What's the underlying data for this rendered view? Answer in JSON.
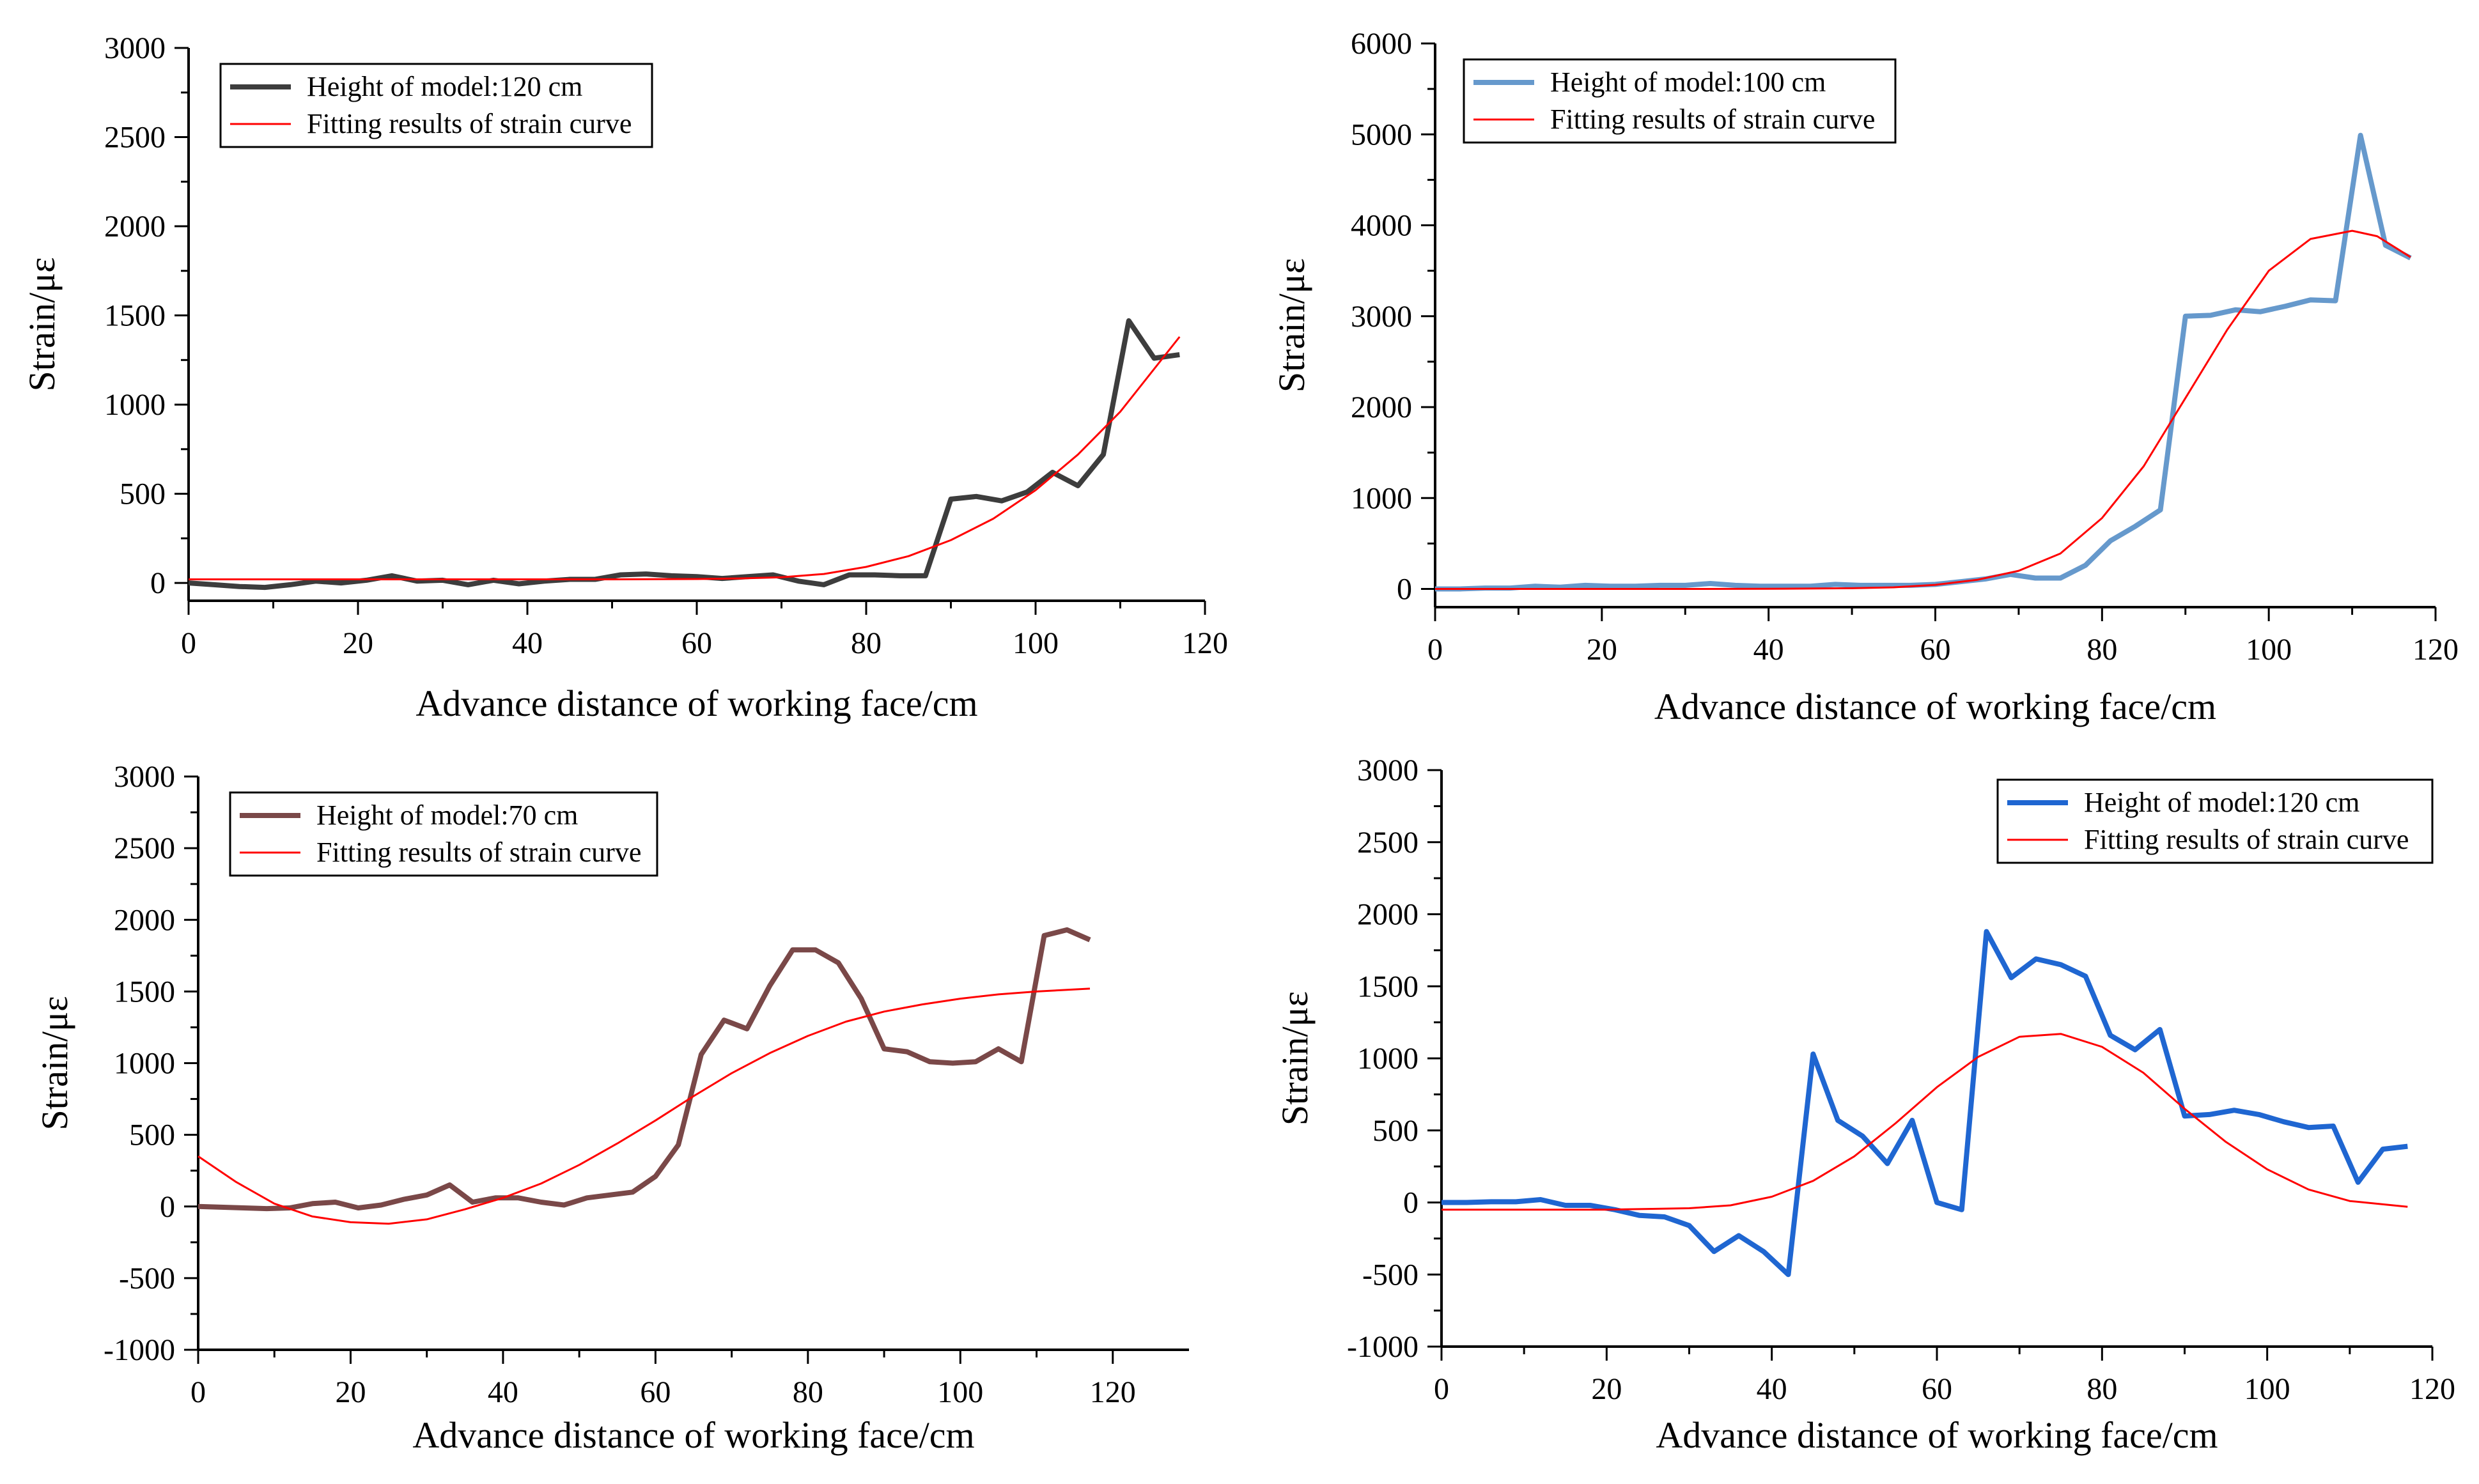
{
  "figure": {
    "panels": [
      {
        "id": "top-left",
        "legend_position": "top-left",
        "legend": [
          {
            "label": "Height of model:120 cm",
            "series": 0
          },
          {
            "label": "Fitting results of strain curve",
            "series": 1
          }
        ]
      },
      {
        "id": "top-right",
        "legend_position": "top-left",
        "legend": [
          {
            "label": "Height of model:100 cm",
            "series": 0
          },
          {
            "label": "Fitting results of strain curve",
            "series": 1
          }
        ]
      },
      {
        "id": "bottom-left",
        "legend_position": "top-left",
        "legend": [
          {
            "label": "Height of model:70 cm",
            "series": 0
          },
          {
            "label": "Fitting results of strain curve",
            "series": 1
          }
        ]
      },
      {
        "id": "bottom-right",
        "legend_position": "top-right",
        "legend": [
          {
            "label": "Height of model:120 cm",
            "series": 0
          },
          {
            "label": "Fitting results of strain curve",
            "series": 1
          }
        ]
      }
    ]
  },
  "chart_data": [
    {
      "type": "line",
      "title": "",
      "xlabel": "Advance distance of working face/cm",
      "ylabel": "Strain/με",
      "xlim": [
        0,
        120
      ],
      "ylim": [
        -100,
        3000
      ],
      "xticks": [
        0,
        20,
        40,
        60,
        80,
        100,
        120
      ],
      "yticks": [
        0,
        500,
        1000,
        1500,
        2000,
        2500,
        3000
      ],
      "grid": false,
      "series": [
        {
          "name": "Height of model:120 cm",
          "color": "#3d3d3d",
          "x": [
            0,
            3,
            6,
            9,
            12,
            15,
            18,
            21,
            24,
            27,
            30,
            33,
            36,
            39,
            42,
            45,
            48,
            51,
            54,
            57,
            60,
            63,
            66,
            69,
            72,
            75,
            78,
            81,
            84,
            87,
            90,
            93,
            96,
            99,
            102,
            105,
            108,
            111,
            114,
            117
          ],
          "y": [
            0,
            -10,
            -20,
            -25,
            -10,
            10,
            0,
            15,
            40,
            10,
            15,
            -10,
            15,
            -5,
            10,
            20,
            20,
            45,
            50,
            40,
            35,
            25,
            35,
            45,
            10,
            -10,
            45,
            45,
            40,
            40,
            470,
            485,
            460,
            510,
            620,
            545,
            720,
            1470,
            1260,
            1280
          ]
        },
        {
          "name": "Fitting results of strain curve",
          "color": "#ff0000",
          "x": [
            0,
            10,
            20,
            30,
            40,
            50,
            60,
            65,
            70,
            75,
            80,
            85,
            90,
            95,
            100,
            105,
            110,
            117
          ],
          "y": [
            20,
            20,
            20,
            20,
            20,
            20,
            22,
            25,
            32,
            50,
            90,
            150,
            240,
            360,
            520,
            720,
            960,
            1380
          ]
        }
      ]
    },
    {
      "type": "line",
      "title": "",
      "xlabel": "Advance distance of working face/cm",
      "ylabel": "Strain/με",
      "xlim": [
        0,
        120
      ],
      "ylim": [
        -200,
        6000
      ],
      "xticks": [
        0,
        20,
        40,
        60,
        80,
        100,
        120
      ],
      "yticks": [
        0,
        1000,
        2000,
        3000,
        4000,
        5000,
        6000
      ],
      "grid": false,
      "series": [
        {
          "name": "Height of model:100 cm",
          "color": "#6699cc",
          "x": [
            0,
            3,
            6,
            9,
            12,
            15,
            18,
            21,
            24,
            27,
            30,
            33,
            36,
            39,
            42,
            45,
            48,
            51,
            54,
            57,
            60,
            63,
            66,
            69,
            72,
            75,
            78,
            81,
            84,
            87,
            90,
            93,
            96,
            99,
            102,
            105,
            108,
            111,
            114,
            117
          ],
          "y": [
            0,
            0,
            10,
            10,
            30,
            20,
            40,
            30,
            30,
            40,
            40,
            60,
            40,
            30,
            30,
            30,
            50,
            40,
            40,
            40,
            50,
            80,
            110,
            160,
            120,
            120,
            260,
            530,
            690,
            870,
            3000,
            3010,
            3070,
            3050,
            3110,
            3180,
            3170,
            4990,
            3780,
            3640
          ]
        },
        {
          "name": "Fitting results of strain curve",
          "color": "#ff0000",
          "x": [
            0,
            10,
            20,
            30,
            40,
            50,
            55,
            60,
            65,
            70,
            75,
            80,
            85,
            90,
            95,
            100,
            105,
            110,
            113,
            117
          ],
          "y": [
            0,
            0,
            0,
            0,
            2,
            8,
            18,
            45,
            100,
            200,
            390,
            780,
            1350,
            2100,
            2850,
            3500,
            3850,
            3940,
            3880,
            3650
          ]
        }
      ]
    },
    {
      "type": "line",
      "title": "",
      "xlabel": "Advance distance of working face/cm",
      "ylabel": "Strain/με",
      "xlim": [
        0,
        130
      ],
      "ylim": [
        -1000,
        3000
      ],
      "xticks": [
        0,
        20,
        40,
        60,
        80,
        100,
        120
      ],
      "yticks": [
        -1000,
        -500,
        0,
        500,
        1000,
        1500,
        2000,
        2500,
        3000
      ],
      "grid": false,
      "series": [
        {
          "name": "Height of model:70 cm",
          "color": "#7a4848",
          "x": [
            0,
            3,
            6,
            9,
            12,
            15,
            18,
            21,
            24,
            27,
            30,
            33,
            36,
            39,
            42,
            45,
            48,
            51,
            54,
            57,
            60,
            63,
            66,
            69,
            72,
            75,
            78,
            81,
            84,
            87,
            90,
            93,
            96,
            99,
            102,
            105,
            108,
            111,
            114,
            117
          ],
          "y": [
            0,
            -5,
            -10,
            -15,
            -10,
            20,
            30,
            -10,
            10,
            50,
            80,
            150,
            30,
            60,
            60,
            30,
            10,
            60,
            80,
            100,
            210,
            430,
            1060,
            1300,
            1240,
            1540,
            1790,
            1790,
            1700,
            1450,
            1100,
            1080,
            1010,
            1000,
            1010,
            1100,
            1010,
            1890,
            1930,
            1860
          ]
        },
        {
          "name": "Fitting results of strain curve",
          "color": "#ff0000",
          "x": [
            0,
            5,
            10,
            15,
            20,
            25,
            30,
            35,
            40,
            45,
            50,
            55,
            60,
            65,
            70,
            75,
            80,
            85,
            90,
            95,
            100,
            105,
            110,
            117
          ],
          "y": [
            350,
            170,
            20,
            -70,
            -110,
            -120,
            -90,
            -20,
            60,
            160,
            290,
            440,
            600,
            770,
            930,
            1070,
            1190,
            1290,
            1360,
            1410,
            1450,
            1480,
            1500,
            1520
          ]
        }
      ]
    },
    {
      "type": "line",
      "title": "",
      "xlabel": "Advance distance of working face/cm",
      "ylabel": "Strain/με",
      "xlim": [
        0,
        120
      ],
      "ylim": [
        -1000,
        3000
      ],
      "xticks": [
        0,
        20,
        40,
        60,
        80,
        100,
        120
      ],
      "yticks": [
        -1000,
        -500,
        0,
        500,
        1000,
        1500,
        2000,
        2500,
        3000
      ],
      "grid": false,
      "series": [
        {
          "name": "Height of model:120 cm",
          "color": "#1f66d1",
          "x": [
            0,
            3,
            6,
            9,
            12,
            15,
            18,
            21,
            24,
            27,
            30,
            33,
            36,
            39,
            42,
            45,
            48,
            51,
            54,
            57,
            60,
            63,
            66,
            69,
            72,
            75,
            78,
            81,
            84,
            87,
            90,
            93,
            96,
            99,
            102,
            105,
            108,
            111,
            114,
            117
          ],
          "y": [
            0,
            0,
            5,
            5,
            20,
            -20,
            -20,
            -50,
            -90,
            -100,
            -160,
            -340,
            -230,
            -340,
            -500,
            1030,
            570,
            460,
            270,
            570,
            0,
            -50,
            1880,
            1560,
            1690,
            1650,
            1570,
            1160,
            1060,
            1200,
            600,
            610,
            640,
            610,
            560,
            520,
            530,
            140,
            370,
            390
          ]
        },
        {
          "name": "Fitting results of strain curve",
          "color": "#ff0000",
          "x": [
            0,
            10,
            20,
            25,
            30,
            35,
            40,
            45,
            50,
            55,
            60,
            65,
            70,
            75,
            80,
            85,
            90,
            95,
            100,
            105,
            110,
            117
          ],
          "y": [
            -50,
            -50,
            -50,
            -45,
            -40,
            -20,
            40,
            150,
            320,
            550,
            800,
            1010,
            1150,
            1170,
            1080,
            900,
            650,
            420,
            230,
            90,
            10,
            -30
          ]
        }
      ]
    }
  ]
}
